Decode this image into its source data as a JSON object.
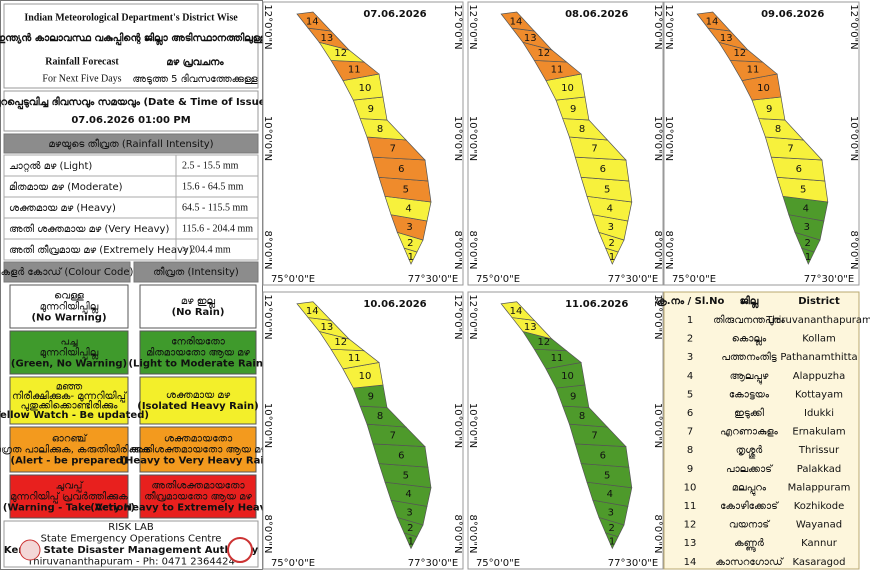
{
  "header": {
    "line1": "Indian Meteorological Department's District Wise",
    "line2": "ഇന്ത്യൻ കാലാവസ്ഥ വകുപ്പിന്റെ ജില്ലാ അടിസ്ഥാനത്തിലുള്ള",
    "title_en": "Rainfall Forecast",
    "subtitle_en": "For Next Five Days",
    "title_ml": "മഴ പ്രവചനം",
    "subtitle_ml": "അടുത്ത 5 ദിവസത്തേക്കുള്ള"
  },
  "issue": {
    "label": "പുറപ്പെടുവിച്ച ദിവസവും സമയവും (Date & Time of Issue)",
    "value": "07.06.2026   01:00 PM"
  },
  "intensity": {
    "heading": "മഴയുടെ തീവ്രത (Rainfall Intensity)",
    "rows": [
      [
        "ചാറ്റൽ മഴ (Light)",
        "2.5 - 15.5 mm"
      ],
      [
        "മിതമായ മഴ (Moderate)",
        "15.6 - 64.5 mm"
      ],
      [
        "ശക്തമായ മഴ (Heavy)",
        "64.5 - 115.5 mm"
      ],
      [
        "അതി ശക്തമായ മഴ (Very Heavy)",
        "115.6 - 204.4 mm"
      ],
      [
        "അതി തീവ്രമായ മഴ (Extremely Heavy)",
        "> 204.4 mm"
      ]
    ]
  },
  "colour_code": {
    "headings": [
      "കളർ കോഡ് (Colour Code)",
      "തീവ്രത (Intensity)"
    ],
    "rows": [
      {
        "color": "#ffffff",
        "code": [
          "വെള്ള",
          "മുന്നറിയിപ്പില്ല",
          "(No Warning)"
        ],
        "intensity": [
          "മഴ ഇല്ല",
          "(No Rain)"
        ]
      },
      {
        "color": "#3f9a2c",
        "code": [
          "പച്ച",
          "മുന്നറിയിപ്പില്ല",
          "(Green, No Warning)"
        ],
        "intensity": [
          "നേരിയതോ",
          "മിതമായതോ ആയ മഴ",
          "(Light to Moderate Rain)"
        ]
      },
      {
        "color": "#f3ef2a",
        "code": [
          "മഞ്ഞ",
          "നിരീക്ഷിക്കുക- മുന്നറിയിപ്പ്",
          "പുതുക്കിക്കൊണ്ടിരിക്കും",
          "(Yellow Watch - Be updated)"
        ],
        "intensity": [
          "ശക്തമായ മഴ",
          "(Isolated Heavy Rain)"
        ]
      },
      {
        "color": "#f39a1e",
        "code": [
          "ഓറഞ്ച്",
          "ജാഗ്രത പാലിക്കുക, കരുതിയിരിക്കുക",
          "(Alert - be prepared)"
        ],
        "intensity": [
          "ശക്തമായതോ",
          "അതിശക്തമായതോ ആയ മഴ",
          "(Heavy to Very Heavy Rain)"
        ]
      },
      {
        "color": "#e8201e",
        "code": [
          "ചുവപ്പ്",
          "മുന്നറിയിപ്പ് പ്രവർത്തിക്കുക",
          "(Warning - Take Action)"
        ],
        "intensity": [
          "അതിശക്തമായതോ",
          "തീവ്രമായതോ ആയ മഴ",
          "(Very Heavy to Extremely Heavy Rain)"
        ]
      }
    ]
  },
  "footer": {
    "lines": [
      "RISK LAB",
      "State Emergency Operations Centre",
      "Kerala State Disaster Management Authority",
      "Thiruvananthapuram - Ph: 0471 2364424"
    ]
  },
  "map_axes": {
    "lon_labels": [
      "75°0'0\"E",
      "77°30'0\"E"
    ],
    "lat_labels": [
      "12°0'0\"N",
      "10°0'0\"N",
      "8°0'0\"N"
    ]
  },
  "maps": [
    {
      "date": "07.06.2026",
      "district_colors": [
        "#f7f13c",
        "#f7f13c",
        "#ef8b2c",
        "#f7f13c",
        "#ef8b2c",
        "#ef8b2c",
        "#ef8b2c",
        "#f7f13c",
        "#f7f13c",
        "#f7f13c",
        "#ef8b2c",
        "#f7f13c",
        "#ef8b2c",
        "#ef8b2c"
      ]
    },
    {
      "date": "08.06.2026",
      "district_colors": [
        "#f7f13c",
        "#f7f13c",
        "#f7f13c",
        "#f7f13c",
        "#f7f13c",
        "#f7f13c",
        "#f7f13c",
        "#f7f13c",
        "#f7f13c",
        "#f7f13c",
        "#ef8b2c",
        "#ef8b2c",
        "#ef8b2c",
        "#ef8b2c"
      ]
    },
    {
      "date": "09.06.2026",
      "district_colors": [
        "#4e9a2b",
        "#4e9a2b",
        "#4e9a2b",
        "#4e9a2b",
        "#f7f13c",
        "#f7f13c",
        "#f7f13c",
        "#f7f13c",
        "#f7f13c",
        "#ef8b2c",
        "#ef8b2c",
        "#ef8b2c",
        "#ef8b2c",
        "#ef8b2c"
      ]
    },
    {
      "date": "10.06.2026",
      "district_colors": [
        "#4e9a2b",
        "#4e9a2b",
        "#4e9a2b",
        "#4e9a2b",
        "#4e9a2b",
        "#4e9a2b",
        "#4e9a2b",
        "#4e9a2b",
        "#4e9a2b",
        "#f7f13c",
        "#f7f13c",
        "#f7f13c",
        "#f7f13c",
        "#f7f13c"
      ]
    },
    {
      "date": "11.06.2026",
      "district_colors": [
        "#4e9a2b",
        "#4e9a2b",
        "#4e9a2b",
        "#4e9a2b",
        "#4e9a2b",
        "#4e9a2b",
        "#4e9a2b",
        "#4e9a2b",
        "#4e9a2b",
        "#4e9a2b",
        "#4e9a2b",
        "#4e9a2b",
        "#f7f13c",
        "#f7f13c"
      ]
    }
  ],
  "district_table": {
    "headers": [
      "ക്ര.നം / Sl.No",
      "ജില്ല",
      "District"
    ],
    "rows": [
      [
        "1",
        "തിരുവനന്തപുരം",
        "Thiruvananthapuram"
      ],
      [
        "2",
        "കൊല്ലം",
        "Kollam"
      ],
      [
        "3",
        "പത്തനംതിട്ട",
        "Pathanamthitta"
      ],
      [
        "4",
        "ആലപ്പുഴ",
        "Alappuzha"
      ],
      [
        "5",
        "കോട്ടയം",
        "Kottayam"
      ],
      [
        "6",
        "ഇടുക്കി",
        "Idukki"
      ],
      [
        "7",
        "എറണാകുളം",
        "Ernakulam"
      ],
      [
        "8",
        "തൃശ്ശൂർ",
        "Thrissur"
      ],
      [
        "9",
        "പാലക്കാട്",
        "Palakkad"
      ],
      [
        "10",
        "മലപ്പുറം",
        "Malappuram"
      ],
      [
        "11",
        "കോഴിക്കോട്",
        "Kozhikode"
      ],
      [
        "12",
        "വയനാട്",
        "Wayanad"
      ],
      [
        "13",
        "കണ്ണൂർ",
        "Kannur"
      ],
      [
        "14",
        "കാസറഗോഡ്",
        "Kasaragod"
      ]
    ]
  }
}
